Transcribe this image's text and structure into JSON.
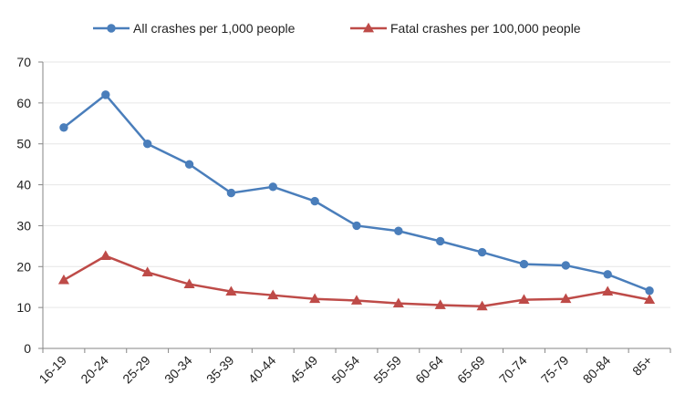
{
  "chart_data": {
    "type": "line",
    "categories": [
      "16-19",
      "20-24",
      "25-29",
      "30-34",
      "35-39",
      "40-44",
      "45-49",
      "50-54",
      "55-59",
      "60-64",
      "65-69",
      "70-74",
      "75-79",
      "80-84",
      "85+"
    ],
    "series": [
      {
        "name": "All crashes per 1,000 people",
        "color": "#4A7EBB",
        "marker": "circle",
        "values": [
          54,
          62,
          50,
          45,
          38,
          39.5,
          36,
          30,
          28.7,
          26.2,
          23.5,
          20.6,
          20.3,
          18.1,
          14.1
        ]
      },
      {
        "name": "Fatal crashes per 100,000 people",
        "color": "#BE4B48",
        "marker": "triangle",
        "values": [
          16.7,
          22.6,
          18.6,
          15.7,
          13.9,
          13.0,
          12.1,
          11.7,
          11.0,
          10.6,
          10.3,
          11.9,
          12.1,
          13.9,
          11.9
        ]
      }
    ],
    "ylim": [
      0,
      70
    ],
    "yticks": [
      "0",
      "10",
      "20",
      "30",
      "40",
      "50",
      "60",
      "70"
    ],
    "grid": true,
    "legend_position": "top"
  }
}
